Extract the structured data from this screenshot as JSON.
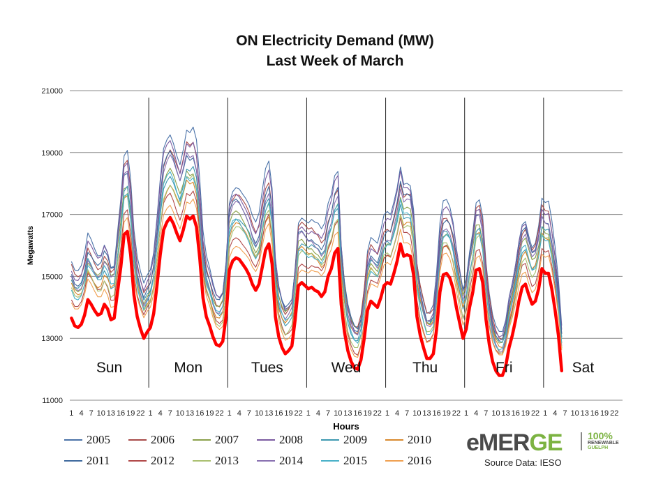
{
  "chart_data": {
    "type": "line",
    "title": "ON Electricity Demand (MW)",
    "subtitle": "Last Week of March",
    "xlabel": "Hours",
    "ylabel": "Megawatts",
    "ylim": [
      11000,
      21000
    ],
    "yticks": [
      "11000",
      "13000",
      "15000",
      "17000",
      "19000",
      "21000"
    ],
    "xtick_labels": [
      "1",
      "4",
      "7",
      "10",
      "13",
      "16",
      "19",
      "22"
    ],
    "days": [
      "Sun",
      "Mon",
      "Tues",
      "Wed",
      "Thu",
      "Fri",
      "Sat"
    ],
    "grid": "horizontal",
    "legend_position": "bottom",
    "series": [
      {
        "name": "2005",
        "color": "#4a72a8",
        "base": 16300,
        "amp": 1.3
      },
      {
        "name": "2006",
        "color": "#a84a48",
        "base": 16000,
        "amp": 1.2
      },
      {
        "name": "2007",
        "color": "#8aa04a",
        "base": 15600,
        "amp": 1.05
      },
      {
        "name": "2008",
        "color": "#7a5aa0",
        "base": 16100,
        "amp": 1.25
      },
      {
        "name": "2009",
        "color": "#3c98b0",
        "base": 15500,
        "amp": 1.1
      },
      {
        "name": "2010",
        "color": "#d8882c",
        "base": 15300,
        "amp": 1.0
      },
      {
        "name": "2011",
        "color": "#3f6a9e",
        "base": 15900,
        "amp": 1.15
      },
      {
        "name": "2012",
        "color": "#b04848",
        "base": 15000,
        "amp": 1.05
      },
      {
        "name": "2013",
        "color": "#aac070",
        "base": 15200,
        "amp": 1.1
      },
      {
        "name": "2014",
        "color": "#8870b0",
        "base": 15700,
        "amp": 1.2
      },
      {
        "name": "2015",
        "color": "#48b0c8",
        "base": 15400,
        "amp": 1.1
      },
      {
        "name": "2016",
        "color": "#f0a050",
        "base": 14800,
        "amp": 1.0
      }
    ],
    "highlight": {
      "color": "#ff0000",
      "values": [
        13650,
        13400,
        13350,
        13450,
        13750,
        14250,
        14100,
        13900,
        13750,
        13800,
        14100,
        13950,
        13600,
        13650,
        14500,
        15300,
        16350,
        16450,
        15700,
        14400,
        13700,
        13300,
        13000,
        13200,
        13350,
        13800,
        14700,
        15700,
        16500,
        16750,
        16900,
        16700,
        16400,
        16150,
        16500,
        16950,
        16850,
        16950,
        16600,
        15600,
        14300,
        13700,
        13400,
        13050,
        12800,
        12750,
        12900,
        13700,
        15200,
        15500,
        15600,
        15550,
        15400,
        15250,
        15050,
        14750,
        14550,
        14750,
        15300,
        15850,
        16050,
        15400,
        13700,
        13050,
        12700,
        12500,
        12600,
        12750,
        13600,
        14700,
        14800,
        14700,
        14600,
        14650,
        14550,
        14500,
        14350,
        14500,
        15000,
        15250,
        15750,
        15900,
        14100,
        13200,
        12600,
        12250,
        12050,
        12000,
        12300,
        13000,
        13900,
        14200,
        14100,
        14000,
        14300,
        14700,
        14800,
        14750,
        15100,
        15500,
        16050,
        15650,
        15700,
        15650,
        15050,
        13700,
        13100,
        12700,
        12350,
        12350,
        12500,
        13300,
        14500,
        15050,
        15100,
        14950,
        14600,
        14000,
        13500,
        13000,
        13300,
        14000,
        14500,
        15200,
        15250,
        14800,
        13600,
        12800,
        12250,
        11950,
        11800,
        11800,
        12100,
        12700,
        13100,
        13600,
        14200,
        14650,
        14750,
        14400,
        14100,
        14200,
        14600,
        15250,
        15100,
        15100,
        14600,
        13900,
        13100,
        11950
      ]
    }
  },
  "branding": {
    "logo_prefix": "eMER",
    "logo_accent": "GE",
    "renewable_pct": "100%",
    "renewable_word": "RENEWABLE",
    "renewable_city": "GUELPH",
    "source": "Source Data: IESO"
  }
}
